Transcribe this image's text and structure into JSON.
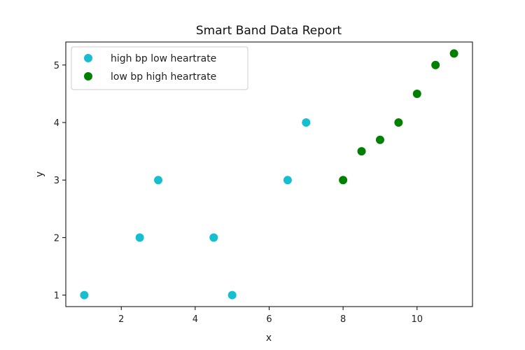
{
  "chart_data": {
    "type": "scatter",
    "title": "Smart Band Data Report",
    "xlabel": "x",
    "ylabel": "y",
    "xlim": [
      0.5,
      11.5
    ],
    "ylim": [
      0.8,
      5.4
    ],
    "xticks": [
      2,
      4,
      6,
      8,
      10
    ],
    "yticks": [
      1,
      2,
      3,
      4,
      5
    ],
    "grid": false,
    "legend_position": "top-left",
    "series": [
      {
        "name": "high bp low heartrate",
        "color": "#17becf",
        "points": [
          {
            "x": 1,
            "y": 1
          },
          {
            "x": 2.5,
            "y": 2
          },
          {
            "x": 3,
            "y": 3
          },
          {
            "x": 4.5,
            "y": 2
          },
          {
            "x": 5,
            "y": 1
          },
          {
            "x": 6.5,
            "y": 3
          },
          {
            "x": 7,
            "y": 4
          }
        ]
      },
      {
        "name": "low bp high heartrate",
        "color": "#008000",
        "points": [
          {
            "x": 8,
            "y": 3
          },
          {
            "x": 8.5,
            "y": 3.5
          },
          {
            "x": 9,
            "y": 3.7
          },
          {
            "x": 9.5,
            "y": 4
          },
          {
            "x": 10,
            "y": 4.5
          },
          {
            "x": 10.5,
            "y": 5
          },
          {
            "x": 11,
            "y": 5.2
          }
        ]
      }
    ]
  }
}
